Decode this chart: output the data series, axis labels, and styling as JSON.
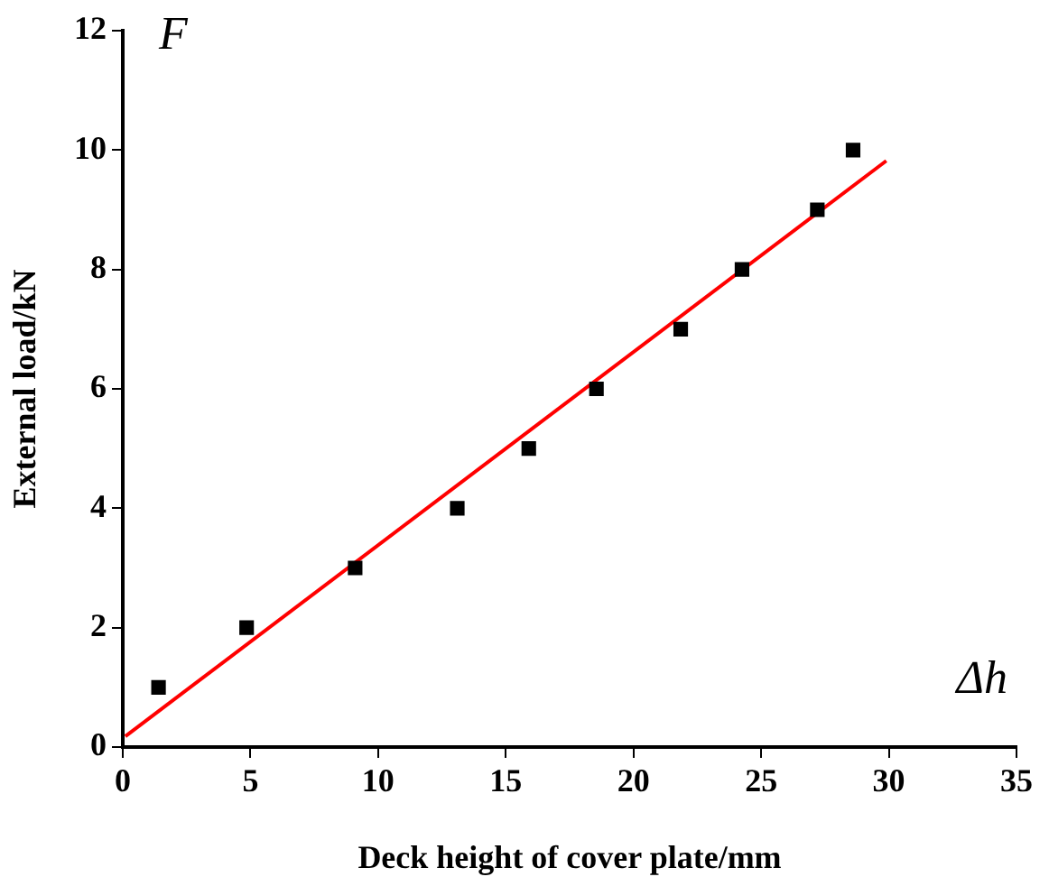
{
  "chart_data": {
    "type": "scatter",
    "xlabel": "Deck height of cover plate/mm",
    "ylabel": "External load/kN",
    "annotations": [
      "F",
      "Δh"
    ],
    "series": [
      {
        "color": "#000000",
        "x": [
          1.4,
          4.85,
          9.1,
          13.1,
          15.9,
          18.55,
          21.85,
          24.25,
          27.2,
          28.6
        ],
        "values": [
          1,
          2,
          3,
          4,
          5,
          6,
          7,
          8,
          9,
          10
        ],
        "marker": "square"
      },
      {
        "type": "line",
        "color": "#ff0000",
        "x": [
          0.1,
          29.9
        ],
        "values": [
          0.18,
          9.82
        ],
        "marker": "none"
      }
    ],
    "xlim": [
      0,
      35
    ],
    "xticks": [
      0,
      5,
      10,
      15,
      20,
      25,
      30,
      35
    ],
    "ylim": [
      0,
      12
    ],
    "yticks": [
      0,
      2,
      4,
      6,
      8,
      10,
      12
    ],
    "grid": false,
    "legend": false
  }
}
